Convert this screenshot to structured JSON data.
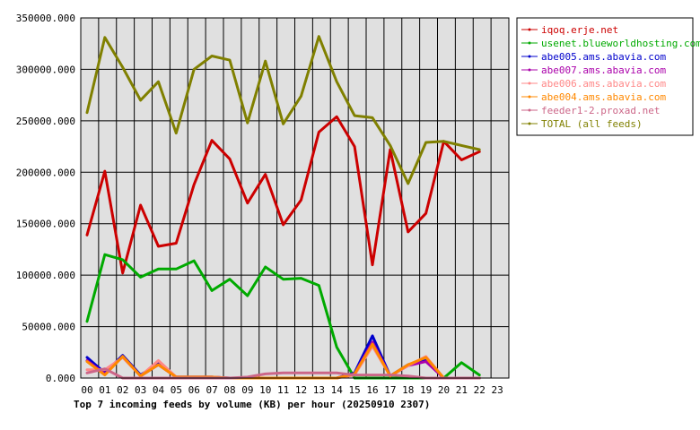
{
  "chart_data": {
    "type": "line",
    "title": "Top 7 incoming feeds by volume (KB) per hour (20250910 2307)",
    "x": [
      "00",
      "01",
      "02",
      "03",
      "04",
      "05",
      "06",
      "07",
      "08",
      "09",
      "10",
      "11",
      "12",
      "13",
      "14",
      "15",
      "16",
      "17",
      "18",
      "19",
      "20",
      "21",
      "22",
      "23"
    ],
    "y_ticks": [
      "0.000",
      "50000.000",
      "100000.000",
      "150000.000",
      "200000.000",
      "250000.000",
      "300000.000",
      "350000.000"
    ],
    "ylim": [
      0,
      350000
    ],
    "grid": true,
    "legend_position": "right",
    "background": "#e0e0e0",
    "series": [
      {
        "name": "iqoq.erje.net",
        "color": "#cc0000",
        "values": [
          139000,
          201000,
          102000,
          168000,
          128000,
          131000,
          188000,
          231000,
          213000,
          170000,
          198000,
          149000,
          173000,
          239000,
          254000,
          225000,
          110000,
          222000,
          142000,
          160000,
          230000,
          212000,
          220000,
          null
        ]
      },
      {
        "name": "usenet.blueworldhosting.com",
        "color": "#00aa00",
        "values": [
          55000,
          120000,
          115000,
          98000,
          106000,
          106000,
          114000,
          85000,
          96000,
          80000,
          108000,
          96000,
          97000,
          90000,
          30000,
          0,
          0,
          0,
          0,
          0,
          0,
          15000,
          3000,
          null
        ]
      },
      {
        "name": "abe005.ams.abavia.com",
        "color": "#0000cc",
        "values": [
          20000,
          5000,
          22000,
          3000,
          14000,
          1000,
          1000,
          1000,
          0,
          0,
          0,
          0,
          0,
          0,
          0,
          5000,
          41000,
          2000,
          13000,
          17000,
          0,
          0,
          0,
          null
        ]
      },
      {
        "name": "abe007.ams.abavia.com",
        "color": "#aa00aa",
        "values": [
          17000,
          4000,
          21000,
          2000,
          13000,
          1000,
          1000,
          1000,
          0,
          0,
          0,
          0,
          0,
          0,
          0,
          4000,
          35000,
          2000,
          12000,
          16000,
          0,
          0,
          0,
          null
        ]
      },
      {
        "name": "abe006.ams.abavia.com",
        "color": "#ff8888",
        "values": [
          8000,
          8000,
          20000,
          2000,
          17000,
          1000,
          1000,
          1000,
          0,
          0,
          0,
          0,
          0,
          0,
          0,
          3000,
          31000,
          2000,
          12000,
          21000,
          0,
          0,
          0,
          null
        ]
      },
      {
        "name": "abe004.ams.abavia.com",
        "color": "#ff8800",
        "values": [
          16000,
          3000,
          21000,
          2000,
          13000,
          1000,
          1000,
          1000,
          0,
          0,
          0,
          0,
          0,
          0,
          0,
          4000,
          33000,
          2000,
          13000,
          20000,
          0,
          0,
          0,
          null
        ]
      },
      {
        "name": "feeder1-2.proxad.net",
        "color": "#cc6688",
        "values": [
          5000,
          9000,
          0,
          0,
          0,
          0,
          0,
          0,
          0,
          1000,
          4000,
          5000,
          5000,
          5000,
          5000,
          3000,
          3000,
          3000,
          2000,
          0,
          0,
          0,
          0,
          null
        ]
      },
      {
        "name": "TOTAL (all feeds)",
        "color": "#808000",
        "values": [
          258000,
          331000,
          302000,
          270000,
          288000,
          238000,
          300000,
          313000,
          309000,
          248000,
          308000,
          247000,
          274000,
          332000,
          288000,
          255000,
          253000,
          226000,
          189000,
          229000,
          230000,
          226000,
          222000,
          null
        ]
      }
    ]
  }
}
